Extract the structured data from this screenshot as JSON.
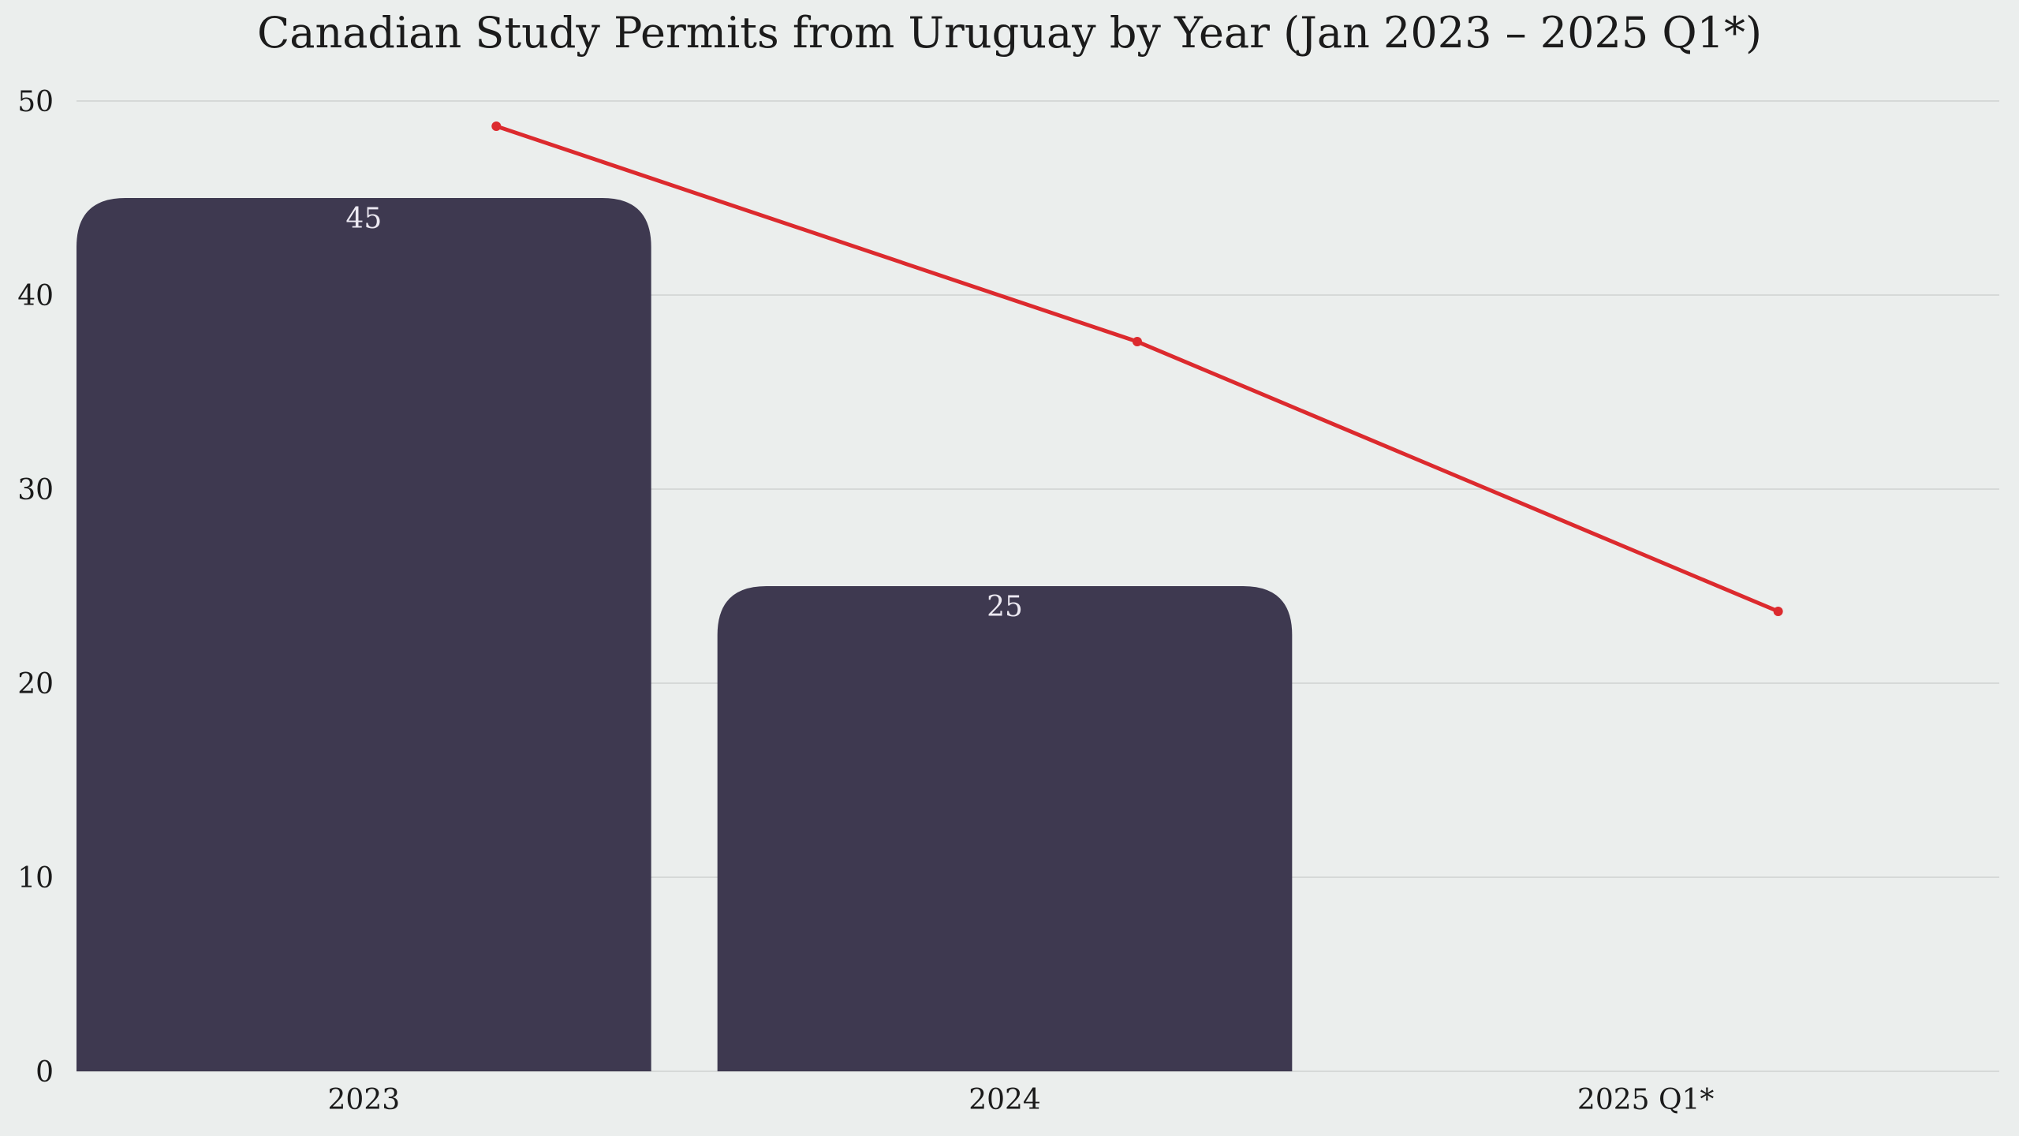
{
  "chart_data": {
    "type": "bar",
    "title": "Canadian Study Permits from Uruguay by Year (Jan 2023 – 2025 Q1*)",
    "categories": [
      "2023",
      "2024",
      "2025 Q1*"
    ],
    "values": [
      45,
      25,
      null
    ],
    "data_labels": [
      "45",
      "25",
      ""
    ],
    "trend_line": {
      "type": "line",
      "values": [
        48.7,
        37.6,
        23.7
      ]
    },
    "xlabel": "",
    "ylabel": "",
    "ylim": [
      0,
      50
    ],
    "yticks": [
      0,
      10,
      20,
      30,
      40,
      50
    ],
    "ytick_labels": [
      "0",
      "10",
      "20",
      "30",
      "40",
      "50"
    ],
    "grid": true,
    "colors": {
      "bar": "#3e3950",
      "line": "#dc2a2e",
      "background": "#ebeeed"
    }
  }
}
